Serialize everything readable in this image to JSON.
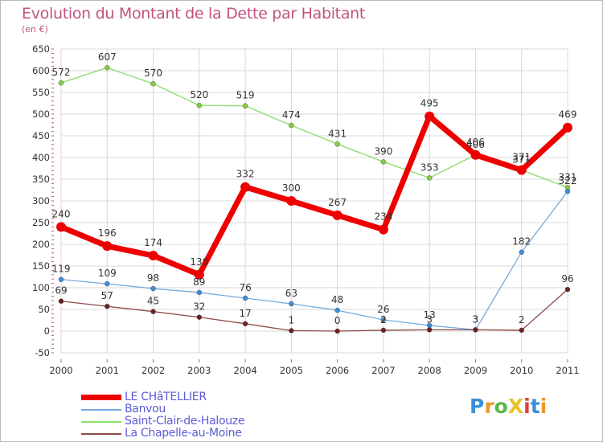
{
  "title": "Evolution du Montant de la Dette par Habitant",
  "subtitle": "(en €)",
  "logo": {
    "text": "ProXiti",
    "letter_colors": [
      "#3a8fd8",
      "#e89a2b",
      "#58b848",
      "#e6c22a",
      "#d84040",
      "#3a8fd8",
      "#e89a2b"
    ]
  },
  "colors": {
    "text_accent": "#c2527f",
    "grid": "#d8d8d8",
    "axis_text": "#333333",
    "legend_text": "#5b5bd6"
  },
  "chart_data": {
    "type": "line",
    "categories": [
      "2000",
      "2001",
      "2002",
      "2003",
      "2004",
      "2005",
      "2006",
      "2007",
      "2008",
      "2009",
      "2010",
      "2011"
    ],
    "ylim": [
      -50,
      650
    ],
    "yticks": [
      -50,
      0,
      50,
      100,
      150,
      200,
      250,
      300,
      350,
      400,
      450,
      500,
      550,
      600,
      650
    ],
    "grid": true,
    "legend_position": "bottom-left",
    "series": [
      {
        "name": "Saint-Clair-de-Halouze",
        "color": "#88dd66",
        "marker_color": "#88cc44",
        "width": 1.3,
        "marker": 3,
        "values": [
          572,
          607,
          570,
          520,
          519,
          474,
          431,
          390,
          353,
          406,
          371,
          331
        ],
        "labels": [
          "572",
          "607",
          "570",
          "520",
          "519",
          "474",
          "431",
          "390",
          "353",
          "406",
          "371",
          "331"
        ]
      },
      {
        "name": "Banvou",
        "color": "#77aadd",
        "marker_color": "#3f8ed6",
        "width": 1.3,
        "marker": 3,
        "values": [
          119,
          109,
          98,
          89,
          76,
          63,
          48,
          26,
          13,
          3,
          182,
          322
        ],
        "labels": [
          "119",
          "109",
          "98",
          "89",
          "76",
          "63",
          "48",
          "26",
          "13",
          "3",
          "182",
          "322"
        ]
      },
      {
        "name": "La Chapelle-au-Moine",
        "color": "#8b4a4a",
        "marker_color": "#6b2020",
        "width": 1.3,
        "marker": 3,
        "values": [
          69,
          57,
          45,
          32,
          17,
          1,
          0,
          2,
          3,
          3,
          2,
          96
        ],
        "labels": [
          "69",
          "57",
          "45",
          "32",
          "17",
          "1",
          "0",
          "2",
          "3",
          "3",
          "2",
          "96"
        ]
      },
      {
        "name": "LE CHâTELLIER",
        "color": "#ee0000",
        "marker_color": "#ee0000",
        "width": 7,
        "marker": 6,
        "values": [
          240,
          196,
          174,
          130,
          332,
          300,
          267,
          234,
          495,
          406,
          371,
          469
        ],
        "labels": [
          "240",
          "196",
          "174",
          "130",
          "332",
          "300",
          "267",
          "234",
          "495",
          "406",
          "371",
          "469"
        ]
      }
    ],
    "legend_order": [
      "LE CHâTELLIER",
      "Banvou",
      "Saint-Clair-de-Halouze",
      "La Chapelle-au-Moine"
    ]
  }
}
